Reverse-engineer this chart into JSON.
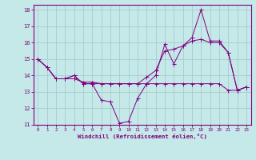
{
  "xlabel": "Windchill (Refroidissement éolien,°C)",
  "background_color": "#c5e8e8",
  "line_color": "#800080",
  "grid_color": "#a8cccc",
  "xlim": [
    -0.5,
    23.5
  ],
  "ylim": [
    11,
    18.3
  ],
  "xticks": [
    0,
    1,
    2,
    3,
    4,
    5,
    6,
    7,
    8,
    9,
    10,
    11,
    12,
    13,
    14,
    15,
    16,
    17,
    18,
    19,
    20,
    21,
    22,
    23
  ],
  "yticks": [
    11,
    12,
    13,
    14,
    15,
    16,
    17,
    18
  ],
  "series1_x": [
    0,
    1,
    2,
    3,
    4,
    5,
    6,
    7,
    8,
    9,
    10,
    11,
    12,
    13,
    14,
    15,
    16,
    17,
    18,
    19,
    20,
    21,
    22,
    23
  ],
  "series1_y": [
    15.0,
    14.5,
    13.8,
    13.8,
    14.0,
    13.5,
    13.5,
    12.5,
    12.4,
    11.1,
    11.2,
    12.6,
    13.5,
    14.0,
    15.9,
    14.7,
    15.8,
    16.3,
    18.0,
    16.1,
    16.1,
    15.4,
    13.1,
    13.3
  ],
  "series2_x": [
    0,
    1,
    2,
    3,
    4,
    5,
    6,
    7,
    8,
    9,
    10,
    11,
    12,
    13,
    14,
    15,
    16,
    17,
    18,
    19,
    20,
    21,
    22,
    23
  ],
  "series2_y": [
    15.0,
    14.5,
    13.8,
    13.8,
    13.8,
    13.6,
    13.6,
    13.5,
    13.5,
    13.5,
    13.5,
    13.5,
    13.5,
    13.5,
    13.5,
    13.5,
    13.5,
    13.5,
    13.5,
    13.5,
    13.5,
    13.1,
    13.1,
    13.3
  ],
  "series3_x": [
    0,
    1,
    2,
    3,
    4,
    5,
    6,
    7,
    8,
    9,
    10,
    11,
    12,
    13,
    14,
    15,
    16,
    17,
    18,
    19,
    20,
    21,
    22,
    23
  ],
  "series3_y": [
    15.0,
    14.5,
    13.8,
    13.8,
    14.0,
    13.5,
    13.5,
    13.5,
    13.5,
    13.5,
    13.5,
    13.5,
    13.9,
    14.3,
    15.5,
    15.6,
    15.8,
    16.1,
    16.2,
    16.0,
    16.0,
    15.4,
    13.1,
    13.3
  ]
}
